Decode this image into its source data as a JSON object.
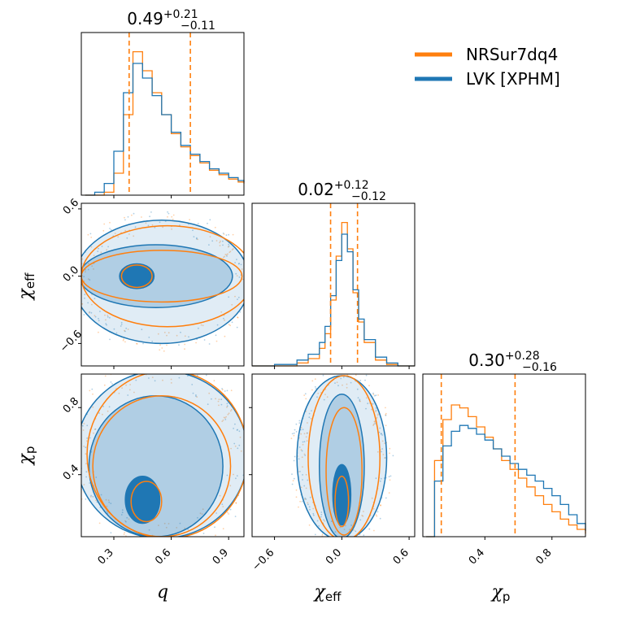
{
  "colors": {
    "nrsur": "#ff7f0e",
    "lvk": "#1f77b4",
    "lvk_fill": "#1f77b4"
  },
  "legend": {
    "placement": "top-right",
    "entries": [
      {
        "name": "NRSur7dq4",
        "color": "#ff7f0e"
      },
      {
        "name": "LVK [XPHM]",
        "color": "#1f77b4"
      }
    ]
  },
  "parameters": {
    "q": {
      "main": "q",
      "sub": "",
      "range": [
        0.13,
        0.98
      ],
      "ticks": [
        "0.3",
        "0.6",
        "0.9"
      ],
      "tick_values": [
        0.3,
        0.6,
        0.9
      ]
    },
    "chi_eff": {
      "main": "χ",
      "sub": "eff",
      "range": [
        -0.8,
        0.65
      ],
      "ticks": [
        "−0.6",
        "0.0",
        "0.6"
      ],
      "tick_values": [
        -0.6,
        0.0,
        0.6
      ]
    },
    "chi_p": {
      "main": "χ",
      "sub": "p",
      "range": [
        0.03,
        1.0
      ],
      "ticks": [
        "0.4",
        "0.8"
      ],
      "tick_values": [
        0.4,
        0.8
      ]
    }
  },
  "titles": {
    "q": {
      "median": "0.49",
      "plus": "+0.21",
      "minus": "−0.11"
    },
    "chi_eff": {
      "median": "0.02",
      "plus": "+0.12",
      "minus": "−0.12"
    },
    "chi_p": {
      "median": "0.30",
      "plus": "+0.28",
      "minus": "−0.16"
    }
  },
  "chart_data": {
    "type": "corner",
    "parameters": [
      "q",
      "chi_eff",
      "chi_p"
    ],
    "quantile_lines": {
      "q": [
        0.38,
        0.7
      ],
      "chi_eff": [
        -0.1,
        0.14
      ],
      "chi_p": [
        0.14,
        0.58
      ]
    },
    "histograms": {
      "q": {
        "x": [
          0.15,
          0.2,
          0.25,
          0.3,
          0.35,
          0.4,
          0.45,
          0.5,
          0.55,
          0.6,
          0.65,
          0.7,
          0.75,
          0.8,
          0.85,
          0.9,
          0.95,
          0.98
        ],
        "NRSur7dq4": [
          0.0,
          0.0,
          0.02,
          0.15,
          0.55,
          0.98,
          0.85,
          0.7,
          0.55,
          0.42,
          0.33,
          0.27,
          0.22,
          0.17,
          0.14,
          0.11,
          0.09,
          0.08
        ],
        "LVK [XPHM]": [
          0.0,
          0.02,
          0.08,
          0.3,
          0.7,
          0.9,
          0.8,
          0.68,
          0.55,
          0.43,
          0.34,
          0.28,
          0.23,
          0.18,
          0.15,
          0.12,
          0.1,
          0.09
        ]
      },
      "chi_eff": {
        "x": [
          -0.8,
          -0.6,
          -0.4,
          -0.3,
          -0.2,
          -0.15,
          -0.1,
          -0.05,
          0.0,
          0.05,
          0.1,
          0.15,
          0.2,
          0.3,
          0.4,
          0.5,
          0.65
        ],
        "NRSur7dq4": [
          0.0,
          0.0,
          0.02,
          0.05,
          0.12,
          0.22,
          0.45,
          0.75,
          0.98,
          0.8,
          0.5,
          0.3,
          0.16,
          0.04,
          0.01,
          0.0,
          0.0
        ],
        "LVK [XPHM]": [
          0.0,
          0.01,
          0.04,
          0.08,
          0.16,
          0.27,
          0.48,
          0.72,
          0.9,
          0.78,
          0.52,
          0.32,
          0.18,
          0.06,
          0.02,
          0.0,
          0.0
        ]
      },
      "chi_p": {
        "x": [
          0.05,
          0.1,
          0.15,
          0.2,
          0.25,
          0.3,
          0.35,
          0.4,
          0.45,
          0.5,
          0.55,
          0.6,
          0.65,
          0.7,
          0.75,
          0.8,
          0.85,
          0.9,
          0.95,
          1.0
        ],
        "NRSur7dq4": [
          0.0,
          0.52,
          0.8,
          0.9,
          0.88,
          0.82,
          0.75,
          0.68,
          0.6,
          0.52,
          0.46,
          0.4,
          0.34,
          0.28,
          0.22,
          0.17,
          0.12,
          0.08,
          0.05,
          0.02
        ],
        "LVK [XPHM]": [
          0.0,
          0.38,
          0.62,
          0.72,
          0.76,
          0.74,
          0.7,
          0.66,
          0.6,
          0.55,
          0.5,
          0.46,
          0.42,
          0.38,
          0.33,
          0.28,
          0.22,
          0.15,
          0.09,
          0.04
        ]
      }
    },
    "contours_2d": {
      "q_vs_chi_eff": {
        "LVK [XPHM]": [
          {
            "level": 0.39,
            "cx": 0.42,
            "cy": 0.0,
            "rx": 0.09,
            "ry": 0.11
          },
          {
            "level": 0.86,
            "cx": 0.52,
            "cy": 0.0,
            "rx": 0.4,
            "ry": 0.28
          },
          {
            "level": 0.99,
            "cx": 0.55,
            "cy": -0.05,
            "rx": 0.46,
            "ry": 0.55
          }
        ],
        "NRSur7dq4": [
          {
            "level": 0.39,
            "cx": 0.42,
            "cy": 0.0,
            "rx": 0.08,
            "ry": 0.1
          },
          {
            "level": 0.86,
            "cx": 0.55,
            "cy": 0.0,
            "rx": 0.42,
            "ry": 0.23
          },
          {
            "level": 0.99,
            "cx": 0.58,
            "cy": 0.0,
            "rx": 0.45,
            "ry": 0.45
          }
        ]
      },
      "q_vs_chi_p": {
        "LVK [XPHM]": [
          {
            "level": 0.39,
            "cx": 0.45,
            "cy": 0.25,
            "rx": 0.09,
            "ry": 0.14
          },
          {
            "level": 0.86,
            "cx": 0.52,
            "cy": 0.45,
            "rx": 0.35,
            "ry": 0.42
          },
          {
            "level": 0.99,
            "cx": 0.55,
            "cy": 0.52,
            "rx": 0.45,
            "ry": 0.5
          }
        ],
        "NRSur7dq4": [
          {
            "level": 0.39,
            "cx": 0.47,
            "cy": 0.24,
            "rx": 0.08,
            "ry": 0.12
          },
          {
            "level": 0.86,
            "cx": 0.55,
            "cy": 0.45,
            "rx": 0.36,
            "ry": 0.42
          },
          {
            "level": 0.99,
            "cx": 0.58,
            "cy": 0.52,
            "rx": 0.42,
            "ry": 0.5
          }
        ]
      },
      "chi_eff_vs_chi_p": {
        "LVK [XPHM]": [
          {
            "level": 0.39,
            "cx": 0.0,
            "cy": 0.28,
            "rx": 0.08,
            "ry": 0.18
          },
          {
            "level": 0.86,
            "cx": 0.0,
            "cy": 0.45,
            "rx": 0.2,
            "ry": 0.43
          },
          {
            "level": 0.99,
            "cx": 0.0,
            "cy": 0.5,
            "rx": 0.4,
            "ry": 0.49
          }
        ],
        "NRSur7dq4": [
          {
            "level": 0.39,
            "cx": 0.0,
            "cy": 0.24,
            "rx": 0.06,
            "ry": 0.15
          },
          {
            "level": 0.86,
            "cx": 0.02,
            "cy": 0.42,
            "rx": 0.16,
            "ry": 0.38
          },
          {
            "level": 0.99,
            "cx": 0.02,
            "cy": 0.5,
            "rx": 0.32,
            "ry": 0.49
          }
        ]
      }
    }
  }
}
